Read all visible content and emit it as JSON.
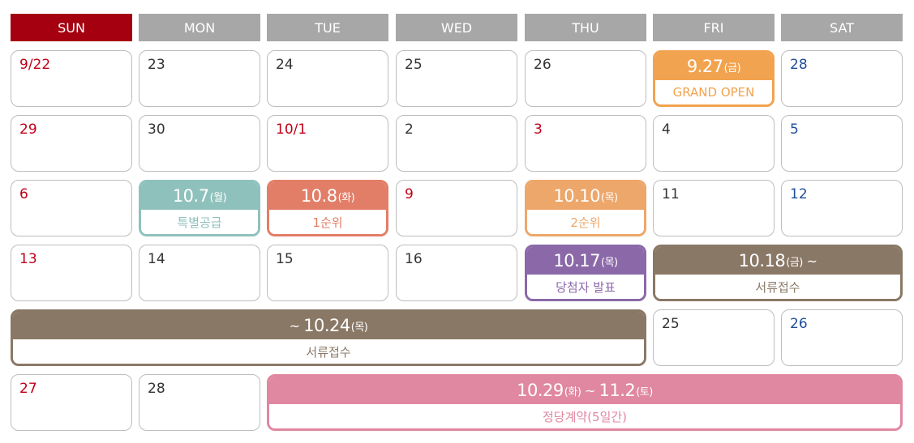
{
  "weekdays": [
    "SUN",
    "MON",
    "TUE",
    "WED",
    "THU",
    "FRI",
    "SAT"
  ],
  "days": {
    "d922": "9/22",
    "d23": "23",
    "d24": "24",
    "d25a": "25",
    "d26a": "26",
    "d28a": "28",
    "d29": "29",
    "d30": "30",
    "d101": "10/1",
    "d2": "2",
    "d3": "3",
    "d4": "4",
    "d5": "5",
    "d6": "6",
    "d9": "9",
    "d11": "11",
    "d12": "12",
    "d13": "13",
    "d14": "14",
    "d15": "15",
    "d16": "16",
    "d25b": "25",
    "d26b": "26",
    "d27": "27",
    "d28b": "28"
  },
  "events": {
    "grand_open": {
      "date": "9.27",
      "day": "(금)",
      "label": "GRAND OPEN",
      "color": "#f2a34f"
    },
    "special": {
      "date": "10.7",
      "day": "(월)",
      "label": "특별공급",
      "color": "#8fc1bc"
    },
    "first": {
      "date": "10.8",
      "day": "(화)",
      "label": "1순위",
      "color": "#e27e67"
    },
    "second": {
      "date": "10.10",
      "day": "(목)",
      "label": "2순위",
      "color": "#eda76a"
    },
    "winners": {
      "date": "10.17",
      "day": "(목)",
      "label": "당첨자 발표",
      "color": "#8b69a8"
    },
    "docs_start": {
      "date": "10.18",
      "day": "(금)",
      "suffix": " ~",
      "label": "서류접수",
      "color": "#8a7866"
    },
    "docs_end": {
      "prefix": "~ ",
      "date": "10.24",
      "day": "(목)",
      "label": "서류접수",
      "color": "#8a7866"
    },
    "contract": {
      "date": "10.29",
      "day": "(화)",
      "mid": " ~ ",
      "date2": "11.2",
      "day2": "(토)",
      "label": "정당계약(5일간)",
      "color": "#e087a1"
    }
  }
}
